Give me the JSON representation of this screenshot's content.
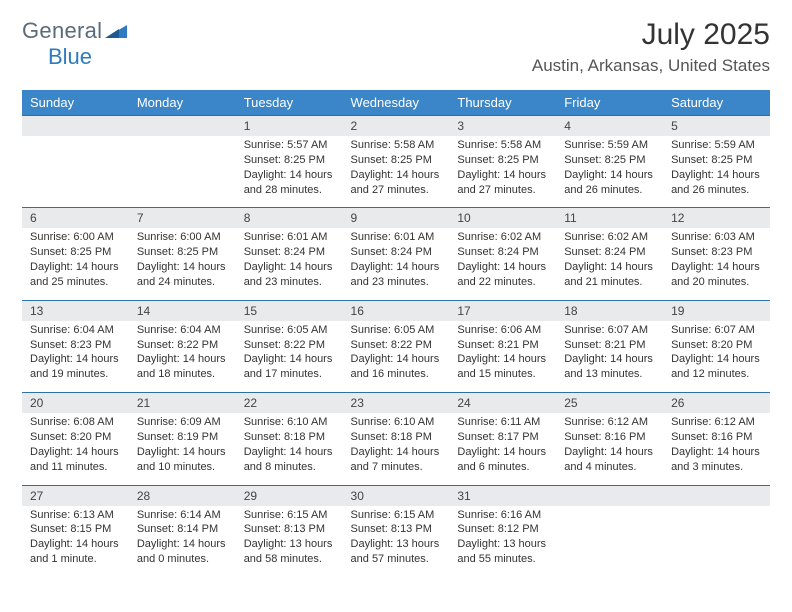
{
  "logo": {
    "general": "General",
    "blue": "Blue"
  },
  "title": "July 2025",
  "location": "Austin, Arkansas, United States",
  "colors": {
    "header_bg": "#3b86c8",
    "header_text": "#ffffff",
    "daynum_bg": "#e8eaec",
    "border": "#2f6fa8",
    "logo_blue": "#2f7bbf",
    "logo_gray": "#5a6b7a"
  },
  "dayHeaders": [
    "Sunday",
    "Monday",
    "Tuesday",
    "Wednesday",
    "Thursday",
    "Friday",
    "Saturday"
  ],
  "weeks": [
    {
      "nums": [
        "",
        "",
        "1",
        "2",
        "3",
        "4",
        "5"
      ],
      "cells": [
        null,
        null,
        {
          "sr": "Sunrise: 5:57 AM",
          "ss": "Sunset: 8:25 PM",
          "d1": "Daylight: 14 hours",
          "d2": "and 28 minutes."
        },
        {
          "sr": "Sunrise: 5:58 AM",
          "ss": "Sunset: 8:25 PM",
          "d1": "Daylight: 14 hours",
          "d2": "and 27 minutes."
        },
        {
          "sr": "Sunrise: 5:58 AM",
          "ss": "Sunset: 8:25 PM",
          "d1": "Daylight: 14 hours",
          "d2": "and 27 minutes."
        },
        {
          "sr": "Sunrise: 5:59 AM",
          "ss": "Sunset: 8:25 PM",
          "d1": "Daylight: 14 hours",
          "d2": "and 26 minutes."
        },
        {
          "sr": "Sunrise: 5:59 AM",
          "ss": "Sunset: 8:25 PM",
          "d1": "Daylight: 14 hours",
          "d2": "and 26 minutes."
        }
      ]
    },
    {
      "nums": [
        "6",
        "7",
        "8",
        "9",
        "10",
        "11",
        "12"
      ],
      "cells": [
        {
          "sr": "Sunrise: 6:00 AM",
          "ss": "Sunset: 8:25 PM",
          "d1": "Daylight: 14 hours",
          "d2": "and 25 minutes."
        },
        {
          "sr": "Sunrise: 6:00 AM",
          "ss": "Sunset: 8:25 PM",
          "d1": "Daylight: 14 hours",
          "d2": "and 24 minutes."
        },
        {
          "sr": "Sunrise: 6:01 AM",
          "ss": "Sunset: 8:24 PM",
          "d1": "Daylight: 14 hours",
          "d2": "and 23 minutes."
        },
        {
          "sr": "Sunrise: 6:01 AM",
          "ss": "Sunset: 8:24 PM",
          "d1": "Daylight: 14 hours",
          "d2": "and 23 minutes."
        },
        {
          "sr": "Sunrise: 6:02 AM",
          "ss": "Sunset: 8:24 PM",
          "d1": "Daylight: 14 hours",
          "d2": "and 22 minutes."
        },
        {
          "sr": "Sunrise: 6:02 AM",
          "ss": "Sunset: 8:24 PM",
          "d1": "Daylight: 14 hours",
          "d2": "and 21 minutes."
        },
        {
          "sr": "Sunrise: 6:03 AM",
          "ss": "Sunset: 8:23 PM",
          "d1": "Daylight: 14 hours",
          "d2": "and 20 minutes."
        }
      ]
    },
    {
      "nums": [
        "13",
        "14",
        "15",
        "16",
        "17",
        "18",
        "19"
      ],
      "cells": [
        {
          "sr": "Sunrise: 6:04 AM",
          "ss": "Sunset: 8:23 PM",
          "d1": "Daylight: 14 hours",
          "d2": "and 19 minutes."
        },
        {
          "sr": "Sunrise: 6:04 AM",
          "ss": "Sunset: 8:22 PM",
          "d1": "Daylight: 14 hours",
          "d2": "and 18 minutes."
        },
        {
          "sr": "Sunrise: 6:05 AM",
          "ss": "Sunset: 8:22 PM",
          "d1": "Daylight: 14 hours",
          "d2": "and 17 minutes."
        },
        {
          "sr": "Sunrise: 6:05 AM",
          "ss": "Sunset: 8:22 PM",
          "d1": "Daylight: 14 hours",
          "d2": "and 16 minutes."
        },
        {
          "sr": "Sunrise: 6:06 AM",
          "ss": "Sunset: 8:21 PM",
          "d1": "Daylight: 14 hours",
          "d2": "and 15 minutes."
        },
        {
          "sr": "Sunrise: 6:07 AM",
          "ss": "Sunset: 8:21 PM",
          "d1": "Daylight: 14 hours",
          "d2": "and 13 minutes."
        },
        {
          "sr": "Sunrise: 6:07 AM",
          "ss": "Sunset: 8:20 PM",
          "d1": "Daylight: 14 hours",
          "d2": "and 12 minutes."
        }
      ]
    },
    {
      "nums": [
        "20",
        "21",
        "22",
        "23",
        "24",
        "25",
        "26"
      ],
      "cells": [
        {
          "sr": "Sunrise: 6:08 AM",
          "ss": "Sunset: 8:20 PM",
          "d1": "Daylight: 14 hours",
          "d2": "and 11 minutes."
        },
        {
          "sr": "Sunrise: 6:09 AM",
          "ss": "Sunset: 8:19 PM",
          "d1": "Daylight: 14 hours",
          "d2": "and 10 minutes."
        },
        {
          "sr": "Sunrise: 6:10 AM",
          "ss": "Sunset: 8:18 PM",
          "d1": "Daylight: 14 hours",
          "d2": "and 8 minutes."
        },
        {
          "sr": "Sunrise: 6:10 AM",
          "ss": "Sunset: 8:18 PM",
          "d1": "Daylight: 14 hours",
          "d2": "and 7 minutes."
        },
        {
          "sr": "Sunrise: 6:11 AM",
          "ss": "Sunset: 8:17 PM",
          "d1": "Daylight: 14 hours",
          "d2": "and 6 minutes."
        },
        {
          "sr": "Sunrise: 6:12 AM",
          "ss": "Sunset: 8:16 PM",
          "d1": "Daylight: 14 hours",
          "d2": "and 4 minutes."
        },
        {
          "sr": "Sunrise: 6:12 AM",
          "ss": "Sunset: 8:16 PM",
          "d1": "Daylight: 14 hours",
          "d2": "and 3 minutes."
        }
      ]
    },
    {
      "nums": [
        "27",
        "28",
        "29",
        "30",
        "31",
        "",
        ""
      ],
      "cells": [
        {
          "sr": "Sunrise: 6:13 AM",
          "ss": "Sunset: 8:15 PM",
          "d1": "Daylight: 14 hours",
          "d2": "and 1 minute."
        },
        {
          "sr": "Sunrise: 6:14 AM",
          "ss": "Sunset: 8:14 PM",
          "d1": "Daylight: 14 hours",
          "d2": "and 0 minutes."
        },
        {
          "sr": "Sunrise: 6:15 AM",
          "ss": "Sunset: 8:13 PM",
          "d1": "Daylight: 13 hours",
          "d2": "and 58 minutes."
        },
        {
          "sr": "Sunrise: 6:15 AM",
          "ss": "Sunset: 8:13 PM",
          "d1": "Daylight: 13 hours",
          "d2": "and 57 minutes."
        },
        {
          "sr": "Sunrise: 6:16 AM",
          "ss": "Sunset: 8:12 PM",
          "d1": "Daylight: 13 hours",
          "d2": "and 55 minutes."
        },
        null,
        null
      ]
    }
  ]
}
